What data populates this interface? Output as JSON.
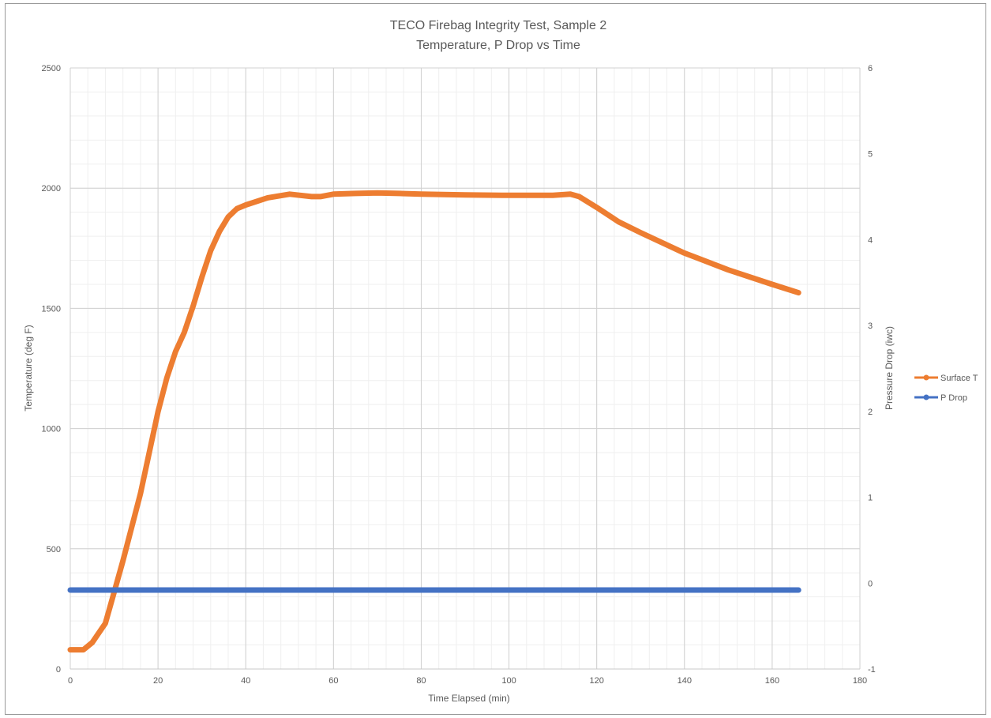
{
  "chart_data": {
    "type": "line",
    "title": "TECO Firebag Integrity Test, Sample 2",
    "subtitle": "Temperature, P Drop vs Time",
    "xlabel": "Time Elapsed (min)",
    "ylabel": "Temperature (deg F)",
    "y2label": "Pressure Drop (iwc)",
    "xlim": [
      0,
      180
    ],
    "ylim": [
      0,
      2500
    ],
    "y2lim": [
      -1,
      6
    ],
    "x_ticks": [
      "0",
      "20",
      "40",
      "60",
      "80",
      "100",
      "120",
      "140",
      "160",
      "180"
    ],
    "y_ticks": [
      "0",
      "500",
      "1000",
      "1500",
      "2000",
      "2500"
    ],
    "y2_ticks": [
      "-1",
      "0",
      "1",
      "2",
      "3",
      "4",
      "5",
      "6"
    ],
    "grid": true,
    "legend_position": "right",
    "series": [
      {
        "name": "Surface T",
        "axis": "left",
        "color": "#ED7D31",
        "x": [
          0,
          3,
          5,
          8,
          10,
          12,
          14,
          16,
          18,
          20,
          22,
          24,
          26,
          28,
          30,
          32,
          34,
          36,
          38,
          40,
          45,
          50,
          55,
          57,
          60,
          65,
          70,
          75,
          80,
          90,
          100,
          110,
          114,
          116,
          120,
          125,
          130,
          140,
          150,
          160,
          166
        ],
        "y": [
          80,
          80,
          110,
          190,
          320,
          450,
          590,
          730,
          900,
          1070,
          1210,
          1320,
          1400,
          1510,
          1630,
          1740,
          1820,
          1880,
          1915,
          1930,
          1960,
          1975,
          1965,
          1965,
          1975,
          1978,
          1980,
          1978,
          1975,
          1972,
          1970,
          1970,
          1975,
          1965,
          1920,
          1860,
          1815,
          1730,
          1660,
          1600,
          1565
        ]
      },
      {
        "name": "P Drop",
        "axis": "right",
        "color": "#4472C4",
        "x": [
          0,
          166
        ],
        "y": [
          -0.08,
          -0.08
        ]
      }
    ]
  }
}
